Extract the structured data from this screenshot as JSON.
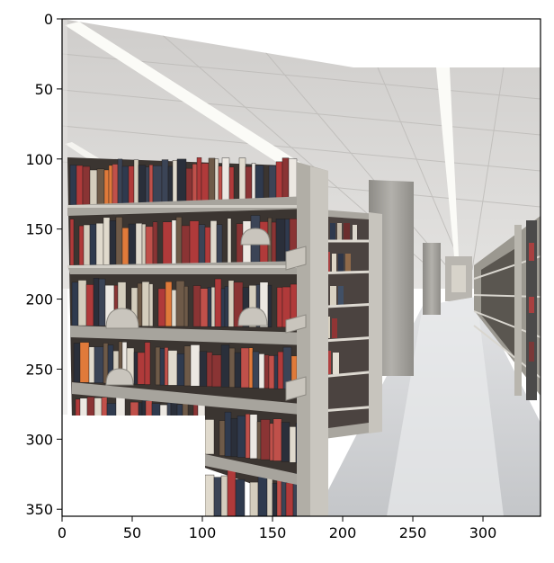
{
  "figure": {
    "type": "image-plot",
    "description_visible": "library stacks photo shown on matplotlib axes",
    "x_axis": {
      "range": [
        0,
        341
      ],
      "ticks": [
        {
          "value": 0,
          "label": "0"
        },
        {
          "value": 50,
          "label": "50"
        },
        {
          "value": 100,
          "label": "100"
        },
        {
          "value": 150,
          "label": "150"
        },
        {
          "value": 200,
          "label": "200"
        },
        {
          "value": 250,
          "label": "250"
        },
        {
          "value": 300,
          "label": "300"
        }
      ]
    },
    "y_axis": {
      "range": [
        355,
        0
      ],
      "inverted": true,
      "ticks": [
        {
          "value": 0,
          "label": "0"
        },
        {
          "value": 50,
          "label": "50"
        },
        {
          "value": 100,
          "label": "100"
        },
        {
          "value": 150,
          "label": "150"
        },
        {
          "value": 200,
          "label": "200"
        },
        {
          "value": 250,
          "label": "250"
        },
        {
          "value": 300,
          "label": "300"
        },
        {
          "value": 350,
          "label": "350"
        }
      ]
    },
    "colors": {
      "ceiling": "#d9d8d6",
      "floor": "#cfd1d4",
      "shelf_metal": "#a8a59d",
      "pillar": "#9c9a95",
      "books_red": "#b03a3a",
      "books_blue": "#2f3a4e",
      "books_white": "#ece8e2",
      "light": "#fafaf6"
    }
  }
}
